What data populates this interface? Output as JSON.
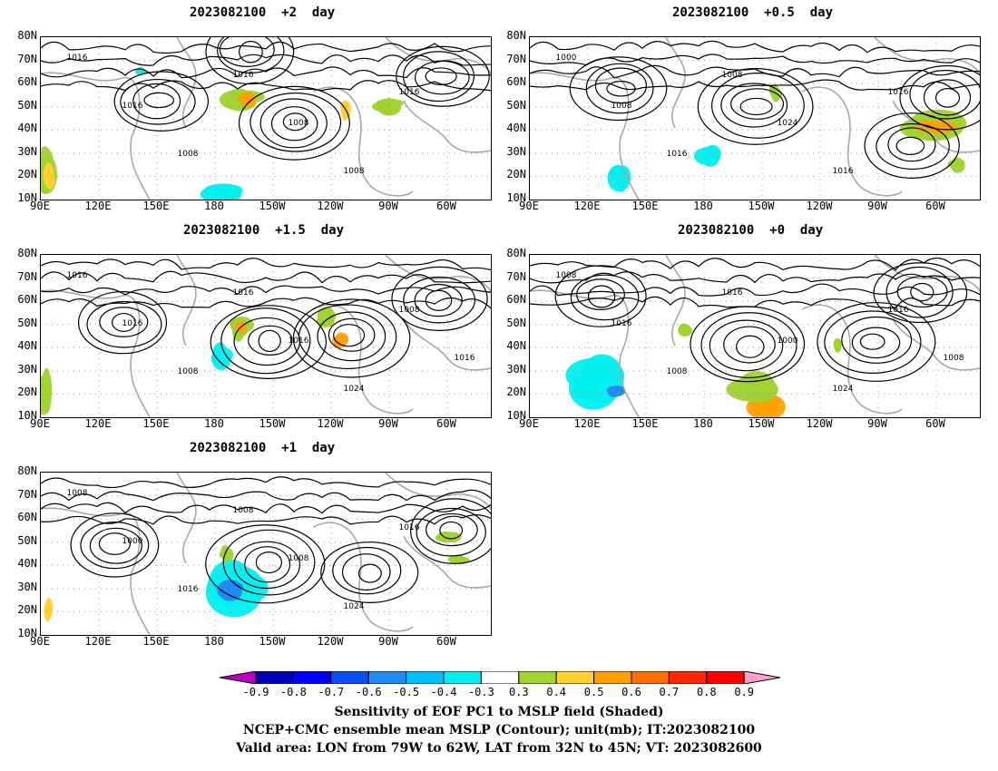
{
  "panels": [
    {
      "title": "2023082100  +2  day",
      "contour_labels": [
        "1016",
        "1016",
        "1008",
        "1016",
        "1008",
        "1008",
        "1016"
      ]
    },
    {
      "title": "2023082100  +0.5  day",
      "contour_labels": [
        "1000",
        "1008",
        "1016",
        "1008",
        "1024",
        "1016",
        "1016"
      ]
    },
    {
      "title": "2023082100  +1.5  day",
      "contour_labels": [
        "1016",
        "1016",
        "1008",
        "1016",
        "1016",
        "1024",
        "1008",
        "1016"
      ]
    },
    {
      "title": "2023082100  +0  day",
      "contour_labels": [
        "1008",
        "1016",
        "1008",
        "1016",
        "1000",
        "1024",
        "1016",
        "1008"
      ]
    },
    {
      "title": "2023082100  +1  day",
      "contour_labels": [
        "1008",
        "1000",
        "1016",
        "1008",
        "1008",
        "1024",
        "1016"
      ]
    }
  ],
  "axes": {
    "lat_labels": [
      "80N",
      "70N",
      "60N",
      "50N",
      "40N",
      "30N",
      "20N",
      "10N"
    ],
    "lon_labels": [
      "90E",
      "120E",
      "150E",
      "180",
      "150W",
      "120W",
      "90W",
      "60W"
    ]
  },
  "colorbar": {
    "labels": [
      "-0.9",
      "-0.8",
      "-0.7",
      "-0.6",
      "-0.5",
      "-0.4",
      "-0.3",
      "0.3",
      "0.4",
      "0.5",
      "0.6",
      "0.7",
      "0.8",
      "0.9"
    ],
    "colors": [
      "#c000c0",
      "#0000b4",
      "#0000ff",
      "#0b50f0",
      "#1e8cf0",
      "#00c0ff",
      "#00f0f0",
      "#ffffff",
      "#a0d232",
      "#ffd232",
      "#ffa000",
      "#ff6e00",
      "#ff2800",
      "#ff0000",
      "#ffa0c8"
    ]
  },
  "footer": {
    "line1": "Sensitivity of EOF PC1 to MSLP field (Shaded)",
    "line2": "NCEP+CMC ensemble mean MSLP (Contour); unit(mb); IT:2023082100",
    "line3": "Valid area: LON from 79W to 62W, LAT from 32N to 45N; VT: 2023082600"
  }
}
